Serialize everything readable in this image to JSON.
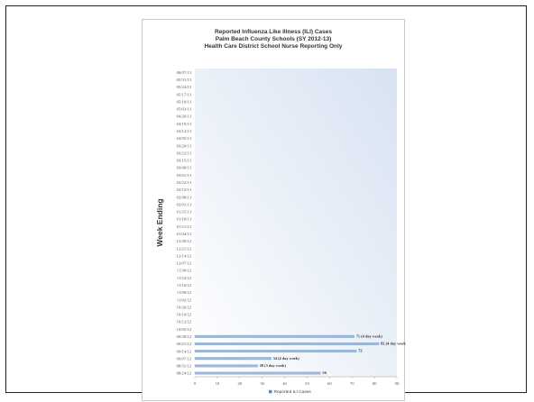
{
  "chart_data": {
    "type": "bar",
    "orientation": "horizontal",
    "title_lines": [
      "Reported Influenza Like Illness (ILI) Cases",
      "Palm Beach County Schools (SY 2012-13)",
      "Health Care District School Nurse Reporting Only"
    ],
    "ylabel": "Week Ending",
    "xlabel": "",
    "x_ticks": [
      "0",
      "10",
      "20",
      "30",
      "40",
      "50",
      "60",
      "70",
      "80",
      "90"
    ],
    "xlim": [
      0,
      90
    ],
    "categories": [
      "08/24/12",
      "08/31/12",
      "09/07/12",
      "09/14/12",
      "09/21/12",
      "09/28/12",
      "10/05/12",
      "10/12/12",
      "10/19/12",
      "10/26/12",
      "11/02/12",
      "11/09/12",
      "11/16/12",
      "11/23/12",
      "11/30/12",
      "12/07/12",
      "12/14/12",
      "12/21/12",
      "12/28/12",
      "01/04/13",
      "01/11/13",
      "01/18/13",
      "01/25/13",
      "02/01/13",
      "02/08/13",
      "02/15/13",
      "02/22/13",
      "03/01/13",
      "03/08/13",
      "03/15/13",
      "03/22/13",
      "03/29/13",
      "04/05/13",
      "04/12/13",
      "04/19/13",
      "04/26/13",
      "05/03/13",
      "05/10/13",
      "05/17/13",
      "05/24/13",
      "05/31/13",
      "06/07/13"
    ],
    "series": [
      {
        "name": "Reported ILI Cases",
        "values": [
          56,
          28,
          34,
          72,
          82,
          71,
          null,
          null,
          null,
          null,
          null,
          null,
          null,
          null,
          null,
          null,
          null,
          null,
          null,
          null,
          null,
          null,
          null,
          null,
          null,
          null,
          null,
          null,
          null,
          null,
          null,
          null,
          null,
          null,
          null,
          null,
          null,
          null,
          null,
          null,
          null,
          null
        ],
        "data_labels": [
          "56",
          "28 (3 day week)",
          "34 (4 day week)",
          "72",
          "82 (4 day week)",
          "71 (4 day week)"
        ]
      }
    ],
    "legend_position": "bottom",
    "colors": {
      "bar": "#9fb8d8",
      "plot_bg_top": "#d7e2f2",
      "plot_bg_bottom": "#ffffff",
      "legend_marker": "#5b83c2"
    }
  }
}
